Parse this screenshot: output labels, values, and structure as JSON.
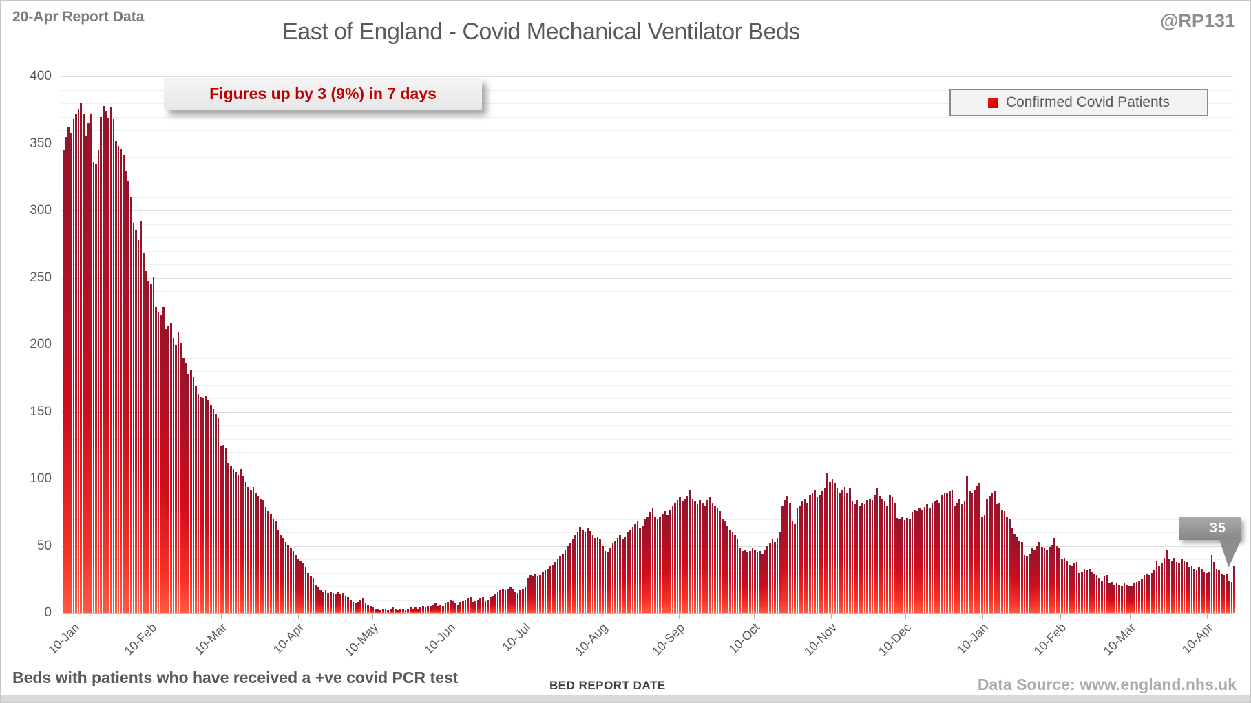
{
  "header": {
    "report_label": "20-Apr Report Data",
    "title": "East of England - Covid Mechanical Ventilator Beds",
    "handle": "@RP131"
  },
  "annotation": {
    "text": "Figures up by 3 (9%) in 7 days"
  },
  "legend": {
    "label": "Confirmed Covid Patients",
    "marker_color": "#e8000d"
  },
  "callout": {
    "value": "35"
  },
  "footer": {
    "left_note": "Beds with patients who have received a +ve covid PCR test",
    "xlabel": "BED REPORT DATE",
    "source": "Data Source: www.england.nhs.uk"
  },
  "colors": {
    "bar_top": "#93152b",
    "bar_bottom": "#ff5a43",
    "accent_red": "#c00000",
    "text_gray": "#595959",
    "source_gray": "#ababab"
  },
  "chart_data": {
    "type": "bar",
    "title": "East of England - Covid Mechanical Ventilator Beds",
    "xlabel": "BED REPORT DATE",
    "ylabel": "",
    "ylim": [
      0,
      400
    ],
    "y_ticks": [
      0,
      50,
      100,
      150,
      200,
      250,
      300,
      350,
      400
    ],
    "minor_gridline_step": 10,
    "grid": true,
    "legend_position": "top-right",
    "x_start_date": "2021-01-06",
    "x_end_date": "2022-04-20",
    "x_tick_labels": [
      "10-Jan",
      "10-Feb",
      "10-Mar",
      "10-Apr",
      "10-May",
      "10-Jun",
      "10-Jul",
      "10-Aug",
      "10-Sep",
      "10-Oct",
      "10-Nov",
      "10-Dec",
      "10-Jan",
      "10-Feb",
      "10-Mar",
      "10-Apr"
    ],
    "x_tick_indices": [
      4,
      35,
      63,
      94,
      124,
      155,
      185,
      216,
      247,
      277,
      308,
      338,
      369,
      400,
      428,
      459
    ],
    "last_value_label": 35,
    "series": [
      {
        "name": "Confirmed Covid Patients",
        "values": [
          345,
          355,
          362,
          358,
          368,
          372,
          376,
          380,
          372,
          356,
          365,
          372,
          336,
          335,
          345,
          370,
          378,
          374,
          369,
          377,
          368,
          352,
          348,
          346,
          341,
          330,
          322,
          310,
          291,
          285,
          278,
          292,
          268,
          255,
          247,
          245,
          251,
          228,
          224,
          222,
          228,
          212,
          214,
          216,
          205,
          200,
          209,
          201,
          190,
          186,
          178,
          181,
          176,
          169,
          163,
          161,
          160,
          162,
          159,
          155,
          152,
          148,
          145,
          124,
          125,
          123,
          112,
          110,
          107,
          105,
          103,
          107,
          102,
          98,
          94,
          92,
          94,
          89,
          87,
          85,
          84,
          79,
          76,
          74,
          70,
          68,
          62,
          58,
          56,
          53,
          51,
          48,
          46,
          43,
          40,
          39,
          37,
          34,
          30,
          27,
          26,
          21,
          19,
          17,
          16,
          17,
          15,
          16,
          15,
          14,
          16,
          14,
          15,
          13,
          12,
          10,
          8,
          7,
          8,
          10,
          11,
          7,
          6,
          5,
          4,
          3,
          3,
          2,
          3,
          3,
          2,
          3,
          4,
          3,
          2,
          3,
          3,
          2,
          3,
          4,
          3,
          4,
          3,
          4,
          5,
          4,
          5,
          5,
          6,
          7,
          5,
          6,
          5,
          7,
          8,
          10,
          9,
          7,
          6,
          8,
          9,
          10,
          11,
          12,
          8,
          9,
          10,
          11,
          12,
          9,
          10,
          12,
          13,
          14,
          16,
          17,
          18,
          17,
          18,
          19,
          18,
          16,
          15,
          17,
          18,
          19,
          26,
          28,
          27,
          29,
          27,
          28,
          31,
          32,
          33,
          35,
          36,
          38,
          40,
          42,
          44,
          47,
          50,
          52,
          55,
          58,
          60,
          64,
          62,
          60,
          63,
          61,
          58,
          56,
          57,
          55,
          50,
          46,
          45,
          48,
          52,
          54,
          56,
          58,
          55,
          57,
          60,
          62,
          64,
          66,
          68,
          63,
          65,
          70,
          72,
          75,
          78,
          72,
          70,
          72,
          74,
          76,
          73,
          77,
          80,
          82,
          84,
          86,
          83,
          85,
          87,
          92,
          85,
          83,
          81,
          84,
          82,
          80,
          84,
          86,
          82,
          80,
          78,
          76,
          70,
          68,
          65,
          62,
          60,
          58,
          55,
          48,
          46,
          47,
          45,
          46,
          48,
          47,
          45,
          46,
          44,
          47,
          50,
          52,
          55,
          53,
          56,
          60,
          80,
          84,
          87,
          82,
          68,
          66,
          78,
          80,
          83,
          85,
          82,
          88,
          90,
          92,
          86,
          88,
          91,
          93,
          104,
          98,
          100,
          97,
          93,
          90,
          92,
          94,
          89,
          93,
          83,
          81,
          84,
          80,
          82,
          81,
          84,
          85,
          84,
          88,
          93,
          87,
          85,
          83,
          80,
          88,
          86,
          82,
          71,
          70,
          72,
          69,
          71,
          70,
          75,
          77,
          76,
          78,
          77,
          79,
          81,
          78,
          82,
          83,
          84,
          82,
          88,
          89,
          90,
          91,
          92,
          80,
          82,
          85,
          81,
          83,
          102,
          91,
          90,
          92,
          95,
          97,
          72,
          73,
          85,
          87,
          89,
          91,
          81,
          82,
          77,
          76,
          72,
          70,
          63,
          59,
          57,
          54,
          53,
          43,
          42,
          44,
          48,
          47,
          50,
          53,
          49,
          48,
          47,
          49,
          51,
          56,
          50,
          48,
          40,
          41,
          39,
          36,
          35,
          37,
          38,
          30,
          31,
          33,
          32,
          33,
          31,
          29,
          28,
          26,
          24,
          27,
          28,
          22,
          23,
          21,
          22,
          21,
          20,
          22,
          21,
          20,
          20,
          22,
          23,
          24,
          25,
          28,
          29,
          28,
          30,
          32,
          39,
          35,
          37,
          41,
          47,
          40,
          39,
          41,
          38,
          37,
          40,
          39,
          38,
          34,
          35,
          33,
          32,
          34,
          33,
          31,
          30,
          31,
          43,
          38,
          33,
          32,
          29,
          28,
          29,
          24,
          23,
          35
        ]
      }
    ]
  }
}
